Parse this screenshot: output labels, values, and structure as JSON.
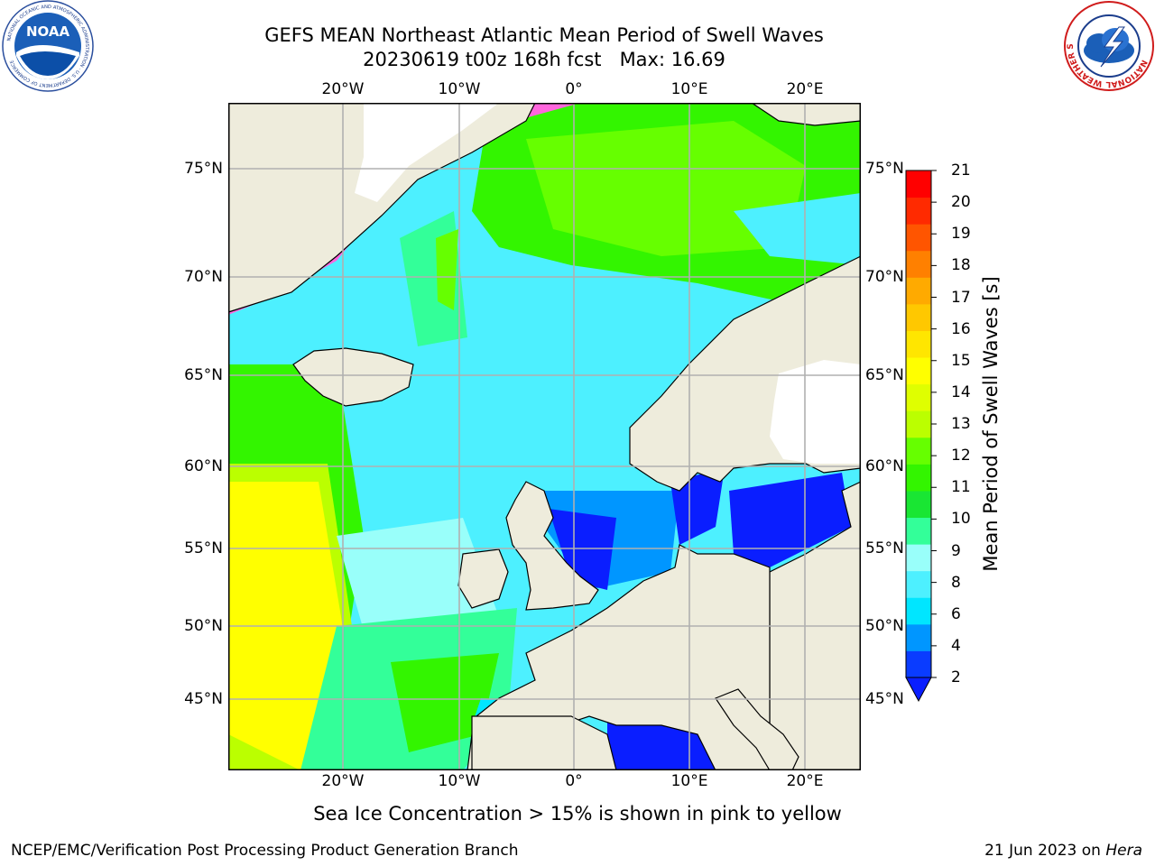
{
  "header": {
    "title_line1": "GEFS MEAN Northeast Atlantic Mean Period of Swell Waves",
    "title_line2": "20230619 t00z 168h fcst   Max: 16.69"
  },
  "logos": {
    "left": {
      "name": "noaa-logo",
      "text": "NOAA",
      "ring_text": "NATIONAL OCEANIC AND ATMOSPHERIC ADMINISTRATION · U.S. DEPARTMENT OF COMMERCE"
    },
    "right": {
      "name": "nws-logo",
      "ring_text": "NATIONAL WEATHER SERVICE"
    }
  },
  "map": {
    "lon_labels": [
      "20°W",
      "10°W",
      "0°",
      "10°E",
      "20°E"
    ],
    "lon_labels_bottom": [
      "20°W",
      "10°W",
      "0°",
      "10°E",
      "20°E"
    ],
    "lat_labels": [
      "75°N",
      "70°N",
      "65°N",
      "60°N",
      "55°N",
      "50°N",
      "45°N"
    ],
    "colors": {
      "land": "#eeecdc",
      "coast": "#000000",
      "grid": "#b0b0b0",
      "ice_pink": "#ff66dd",
      "ice_yellow": "#ffff33"
    }
  },
  "colorbar": {
    "title": "Mean Period of Swell Waves [s]",
    "ticks": [
      "21",
      "20",
      "19",
      "18",
      "17",
      "16",
      "15",
      "14",
      "13",
      "12",
      "11",
      "10",
      "9",
      "8",
      "6",
      "4",
      "2"
    ],
    "colors_bottom_to_top": [
      "#0a3cff",
      "#0096ff",
      "#00e6ff",
      "#4df0ff",
      "#99fffa",
      "#33ff99",
      "#19e633",
      "#33f500",
      "#66ff00",
      "#bbff00",
      "#dfff00",
      "#ffff00",
      "#ffe600",
      "#ffc800",
      "#ffaa00",
      "#ff8000",
      "#ff5500",
      "#ff2a00",
      "#ff0000"
    ],
    "extend_color": "#0a1eff"
  },
  "footer": {
    "note": "Sea Ice Concentration > 15% is shown in pink to yellow",
    "credit": "NCEP/EMC/Verification Post Processing Product Generation Branch",
    "date_prefix": "21 Jun 2023 on ",
    "host": "Hera"
  }
}
